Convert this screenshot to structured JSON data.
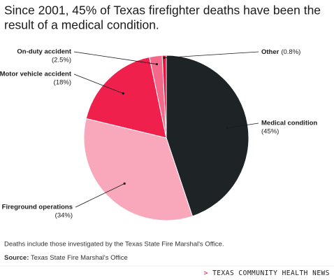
{
  "chart_data": {
    "type": "pie",
    "title_lines": [
      "Since 2001, 45% of Texas firefighter deaths have been the",
      "result of a medical condition."
    ],
    "categories": [
      "Medical condition",
      "Fireground operations",
      "Motor vehicle accident",
      "On-duty accident",
      "Other"
    ],
    "values": [
      45,
      34,
      18,
      2.5,
      0.8
    ],
    "value_labels": [
      "(45%)",
      "(34%)",
      "(18%)",
      "(2.5%)",
      "(0.8%)"
    ],
    "colors": [
      "#1e2426",
      "#f9a8bc",
      "#f0204d",
      "#f4688a",
      "#e5133f"
    ]
  },
  "note": "Deaths include those investigated by the Texas State Fire Marshal's Office.",
  "source_label": "Source:",
  "source": "Texas State Fire Marshal's Office",
  "brand_mark": ">",
  "brand": "TEXAS COMMUNITY HEALTH NEWS"
}
